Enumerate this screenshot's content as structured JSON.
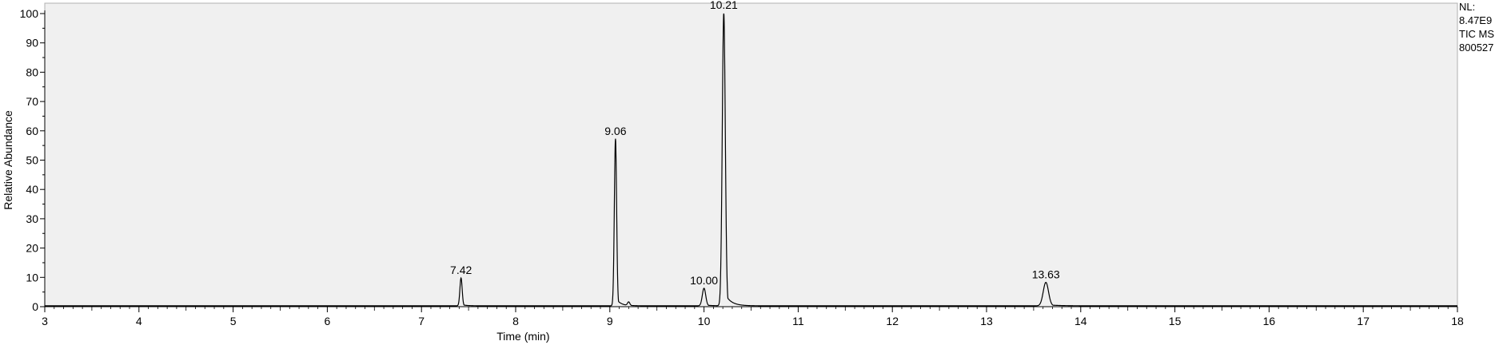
{
  "chart_data": {
    "type": "line",
    "xlabel": "Time (min)",
    "ylabel": "Relative Abundance",
    "xlim": [
      3,
      18
    ],
    "ylim": [
      0,
      100
    ],
    "x_ticks": [
      "3",
      "4",
      "5",
      "6",
      "7",
      "8",
      "9",
      "10",
      "11",
      "12",
      "13",
      "14",
      "15",
      "16",
      "17",
      "18"
    ],
    "y_ticks": [
      "0",
      "10",
      "20",
      "30",
      "40",
      "50",
      "60",
      "70",
      "80",
      "90",
      "100"
    ],
    "info": [
      "NL:",
      "8.47E9",
      "TIC  MS",
      "800527"
    ],
    "peaks": [
      {
        "label": "7.42",
        "rt": 7.42,
        "height": 9.5,
        "width": 0.012
      },
      {
        "label": "9.06",
        "rt": 9.06,
        "height": 57,
        "width": 0.012
      },
      {
        "label": "10.00",
        "rt": 10.0,
        "height": 6,
        "width": 0.018
      },
      {
        "label": "10.21",
        "rt": 10.21,
        "height": 100,
        "width": 0.016
      },
      {
        "label": "13.63",
        "rt": 13.63,
        "height": 8,
        "width": 0.028
      }
    ],
    "minor_peaks": [
      {
        "rt": 9.2,
        "height": 1.2,
        "width": 0.012
      }
    ],
    "baseline": 0.3,
    "grid": false,
    "colors": {
      "plot_background": "#f0f0f0",
      "trace": "#000000",
      "axis": "#000000"
    }
  }
}
